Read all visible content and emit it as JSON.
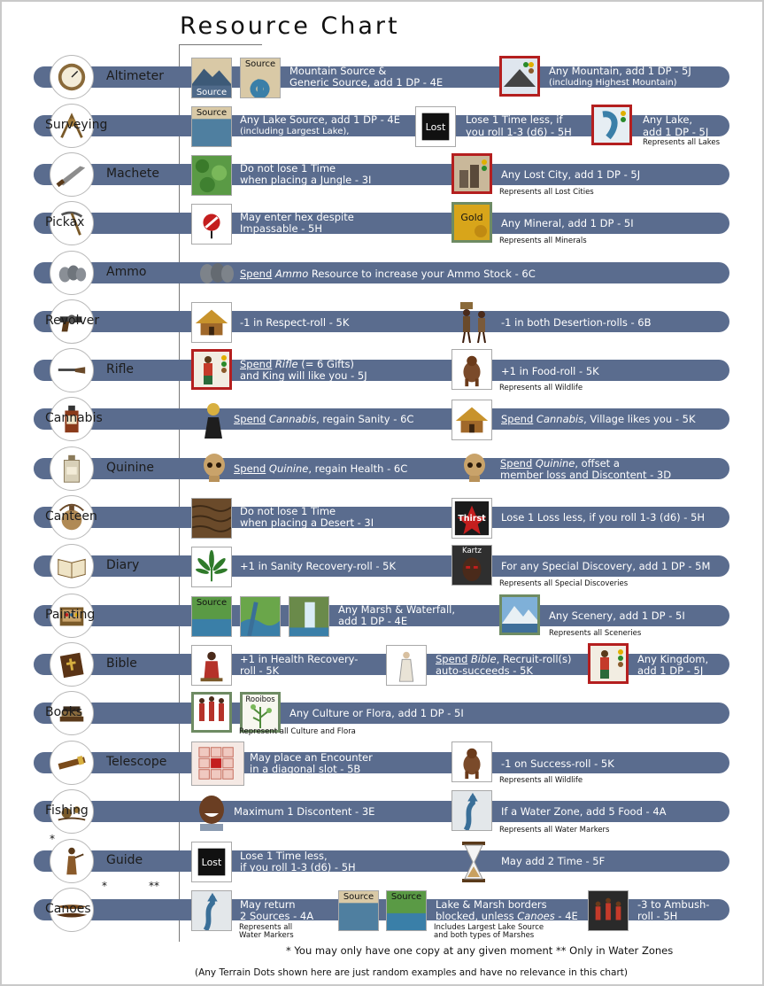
{
  "title": "Resource Chart",
  "rows": [
    {
      "name": "Altimeter",
      "icon": "altimeter-icon",
      "texts": [
        "Mountain Source &",
        "Generic Source, add 1 DP - 4E",
        "Any Mountain, add 1 DP - 5J",
        "(including Highest Mountain)"
      ],
      "tiles": [
        "Source",
        "Source"
      ]
    },
    {
      "name": "Surveying",
      "icon": "surveying-instrument-icon",
      "texts": [
        "Any Lake Source, add 1 DP - 4E",
        "(including Largest Lake),",
        "Lose 1 Time less, if",
        "you roll 1-3 (d6) - 5H",
        "Any Lake,",
        "add 1 DP - 5J",
        "Represents all Lakes"
      ],
      "tiles": [
        "Source",
        "Lost"
      ]
    },
    {
      "name": "Machete",
      "icon": "machete-icon",
      "texts": [
        "Do not lose 1 Time",
        "when placing a Jungle - 3I",
        "Any Lost City, add 1 DP - 5J",
        "Represents all Lost Cities"
      ]
    },
    {
      "name": "Pickax",
      "icon": "pickax-icon",
      "texts": [
        "May enter hex despite",
        "Impassable - 5H",
        "Any Mineral, add 1 DP - 5I",
        "Represents all Minerals"
      ],
      "tiles": [
        "Gold"
      ]
    },
    {
      "name": "Ammo",
      "icon": "ammo-icon",
      "texts": [
        "Spend",
        "Ammo",
        "Resource to increase your Ammo Stock - 6C"
      ]
    },
    {
      "name": "Revolver",
      "icon": "revolver-icon",
      "texts": [
        "-1 in Respect-roll - 5K",
        "-1 in both Desertion-rolls - 6B"
      ]
    },
    {
      "name": "Rifle",
      "icon": "rifle-icon",
      "texts": [
        "Spend",
        "Rifle",
        "(= 6 Gifts)",
        "and King will like you - 5J",
        "+1 in Food-roll - 5K",
        "Represents all Wildlife"
      ]
    },
    {
      "name": "Cannabis",
      "icon": "cannabis-bottle-icon",
      "texts": [
        "Spend",
        "Cannabis",
        ", regain Sanity - 6C",
        "Spend",
        "Cannabis",
        ", Village likes you - 5K"
      ]
    },
    {
      "name": "Quinine",
      "icon": "quinine-bottle-icon",
      "texts": [
        "Spend",
        "Quinine",
        ", regain Health - 6C",
        "Spend",
        "Quinine",
        ", offset a",
        "member loss and Discontent - 3D"
      ]
    },
    {
      "name": "Canteen",
      "icon": "canteen-icon",
      "texts": [
        "Do not lose 1 Time",
        "when placing a Desert - 3I",
        "Lose 1 Loss less, if you roll 1-3 (d6) - 5H"
      ],
      "tiles": [
        "Thirst"
      ]
    },
    {
      "name": "Diary",
      "icon": "diary-icon",
      "texts": [
        "+1 in Sanity Recovery-roll - 5K",
        "For any Special Discovery, add 1 DP - 5M",
        "Represents all Special Discoveries"
      ],
      "tiles": [
        "Kartz"
      ]
    },
    {
      "name": "Painting",
      "icon": "painting-case-icon",
      "texts": [
        "Any Marsh & Waterfall,",
        "add 1 DP - 4E",
        "Any Scenery, add 1 DP - 5I",
        "Represents all Sceneries"
      ],
      "tiles": [
        "Source"
      ]
    },
    {
      "name": "Bible",
      "icon": "bible-icon",
      "texts": [
        "+1 in Health Recovery-",
        "roll - 5K",
        "Spend",
        "Bible",
        ", Recruit-roll(s)",
        "auto-succeeds - 5K",
        "Any Kingdom,",
        "add 1 DP - 5J"
      ]
    },
    {
      "name": "Books",
      "icon": "books-icon",
      "texts": [
        "Any Culture or Flora, add 1 DP - 5I",
        "Represent all Culture and Flora"
      ],
      "tiles": [
        "Rooibos"
      ]
    },
    {
      "name": "Telescope",
      "icon": "telescope-icon",
      "texts": [
        "May place an Encounter",
        "in a diagonal slot - 5B",
        "-1 on Success-roll - 5K",
        "Represents all Wildlife"
      ]
    },
    {
      "name": "Fishing",
      "icon": "fishing-gear-icon",
      "texts": [
        "Maximum 1 Discontent - 3E",
        "If a Water Zone, add 5 Food - 4A",
        "Represents all Water Markers"
      ]
    },
    {
      "name": "Guide",
      "icon": "guide-figure-icon",
      "texts": [
        "Lose 1 Time less,",
        "if you roll 1-3 (d6) - 5H",
        "May add 2 Time - 5F"
      ],
      "tiles": [
        "Lost"
      ]
    },
    {
      "name": "Canoes",
      "icon": "canoes-icon",
      "texts": [
        "May return",
        "2 Sources - 4A",
        "Represents all",
        "Water Markers",
        "Lake & Marsh borders",
        "blocked, unless",
        "Canoes",
        "- 4E",
        "Includes Largest Lake Source",
        "and both types of Marshes",
        "-3 to Ambush-",
        "roll - 5H"
      ],
      "tiles": [
        "Source",
        "Source"
      ]
    }
  ],
  "guide_mark": "*",
  "canoes_marks": [
    "*",
    "**"
  ],
  "footnotes": {
    "one_copy": "* You may only have one copy at any given moment",
    "water_only": "** Only in Water Zones",
    "terrain_dots": "(Any Terrain Dots shown here are just random examples and have no relevance in this chart)"
  },
  "colors": {
    "band": "#5a6c8e",
    "band_left": "#bfc8dd",
    "red_frame": "#b41f1f",
    "green_frame": "#6e8b63"
  }
}
